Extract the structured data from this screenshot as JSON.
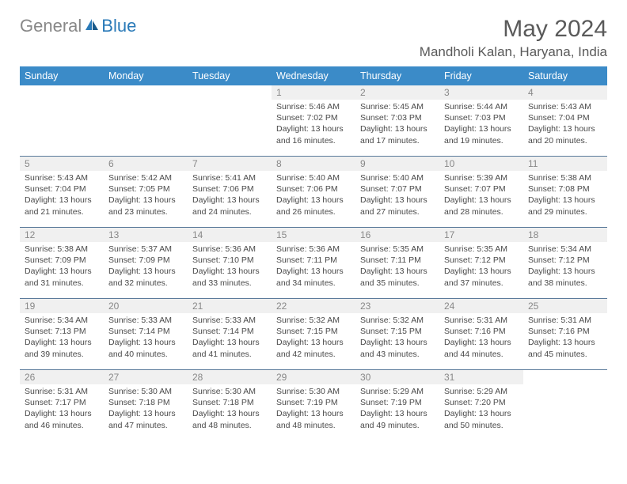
{
  "logo": {
    "text1": "General",
    "text2": "Blue"
  },
  "title": "May 2024",
  "location": "Mandholi Kalan, Haryana, India",
  "headers": [
    "Sunday",
    "Monday",
    "Tuesday",
    "Wednesday",
    "Thursday",
    "Friday",
    "Saturday"
  ],
  "colors": {
    "header_bg": "#3b8bc8",
    "header_text": "#ffffff",
    "daynum_bg": "#f0f0f0",
    "daynum_text": "#888888",
    "border": "#5a7a9a"
  },
  "font": {
    "cell_size_pt": 10.5,
    "header_size_pt": 12.5,
    "title_size_pt": 30
  },
  "weeks": [
    [
      null,
      null,
      null,
      {
        "n": "1",
        "sr": "5:46 AM",
        "ss": "7:02 PM",
        "dl": "13 hours and 16 minutes."
      },
      {
        "n": "2",
        "sr": "5:45 AM",
        "ss": "7:03 PM",
        "dl": "13 hours and 17 minutes."
      },
      {
        "n": "3",
        "sr": "5:44 AM",
        "ss": "7:03 PM",
        "dl": "13 hours and 19 minutes."
      },
      {
        "n": "4",
        "sr": "5:43 AM",
        "ss": "7:04 PM",
        "dl": "13 hours and 20 minutes."
      }
    ],
    [
      {
        "n": "5",
        "sr": "5:43 AM",
        "ss": "7:04 PM",
        "dl": "13 hours and 21 minutes."
      },
      {
        "n": "6",
        "sr": "5:42 AM",
        "ss": "7:05 PM",
        "dl": "13 hours and 23 minutes."
      },
      {
        "n": "7",
        "sr": "5:41 AM",
        "ss": "7:06 PM",
        "dl": "13 hours and 24 minutes."
      },
      {
        "n": "8",
        "sr": "5:40 AM",
        "ss": "7:06 PM",
        "dl": "13 hours and 26 minutes."
      },
      {
        "n": "9",
        "sr": "5:40 AM",
        "ss": "7:07 PM",
        "dl": "13 hours and 27 minutes."
      },
      {
        "n": "10",
        "sr": "5:39 AM",
        "ss": "7:07 PM",
        "dl": "13 hours and 28 minutes."
      },
      {
        "n": "11",
        "sr": "5:38 AM",
        "ss": "7:08 PM",
        "dl": "13 hours and 29 minutes."
      }
    ],
    [
      {
        "n": "12",
        "sr": "5:38 AM",
        "ss": "7:09 PM",
        "dl": "13 hours and 31 minutes."
      },
      {
        "n": "13",
        "sr": "5:37 AM",
        "ss": "7:09 PM",
        "dl": "13 hours and 32 minutes."
      },
      {
        "n": "14",
        "sr": "5:36 AM",
        "ss": "7:10 PM",
        "dl": "13 hours and 33 minutes."
      },
      {
        "n": "15",
        "sr": "5:36 AM",
        "ss": "7:11 PM",
        "dl": "13 hours and 34 minutes."
      },
      {
        "n": "16",
        "sr": "5:35 AM",
        "ss": "7:11 PM",
        "dl": "13 hours and 35 minutes."
      },
      {
        "n": "17",
        "sr": "5:35 AM",
        "ss": "7:12 PM",
        "dl": "13 hours and 37 minutes."
      },
      {
        "n": "18",
        "sr": "5:34 AM",
        "ss": "7:12 PM",
        "dl": "13 hours and 38 minutes."
      }
    ],
    [
      {
        "n": "19",
        "sr": "5:34 AM",
        "ss": "7:13 PM",
        "dl": "13 hours and 39 minutes."
      },
      {
        "n": "20",
        "sr": "5:33 AM",
        "ss": "7:14 PM",
        "dl": "13 hours and 40 minutes."
      },
      {
        "n": "21",
        "sr": "5:33 AM",
        "ss": "7:14 PM",
        "dl": "13 hours and 41 minutes."
      },
      {
        "n": "22",
        "sr": "5:32 AM",
        "ss": "7:15 PM",
        "dl": "13 hours and 42 minutes."
      },
      {
        "n": "23",
        "sr": "5:32 AM",
        "ss": "7:15 PM",
        "dl": "13 hours and 43 minutes."
      },
      {
        "n": "24",
        "sr": "5:31 AM",
        "ss": "7:16 PM",
        "dl": "13 hours and 44 minutes."
      },
      {
        "n": "25",
        "sr": "5:31 AM",
        "ss": "7:16 PM",
        "dl": "13 hours and 45 minutes."
      }
    ],
    [
      {
        "n": "26",
        "sr": "5:31 AM",
        "ss": "7:17 PM",
        "dl": "13 hours and 46 minutes."
      },
      {
        "n": "27",
        "sr": "5:30 AM",
        "ss": "7:18 PM",
        "dl": "13 hours and 47 minutes."
      },
      {
        "n": "28",
        "sr": "5:30 AM",
        "ss": "7:18 PM",
        "dl": "13 hours and 48 minutes."
      },
      {
        "n": "29",
        "sr": "5:30 AM",
        "ss": "7:19 PM",
        "dl": "13 hours and 48 minutes."
      },
      {
        "n": "30",
        "sr": "5:29 AM",
        "ss": "7:19 PM",
        "dl": "13 hours and 49 minutes."
      },
      {
        "n": "31",
        "sr": "5:29 AM",
        "ss": "7:20 PM",
        "dl": "13 hours and 50 minutes."
      },
      null
    ]
  ],
  "labels": {
    "sunrise": "Sunrise:",
    "sunset": "Sunset:",
    "daylight": "Daylight:"
  }
}
